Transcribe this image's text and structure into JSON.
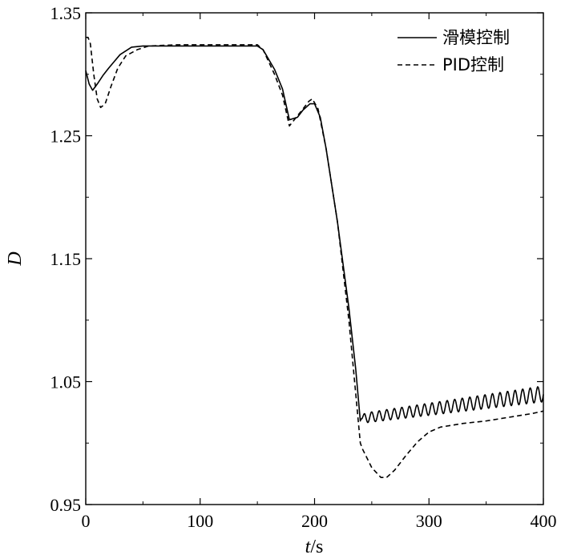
{
  "chart_data": {
    "type": "line",
    "xlabel_italic": "t",
    "xlabel_rest": "/s",
    "ylabel": "D",
    "xlim": [
      0,
      400
    ],
    "ylim": [
      0.95,
      1.35
    ],
    "xticks": [
      0,
      100,
      200,
      300,
      400
    ],
    "yticks": [
      0.95,
      1.05,
      1.15,
      1.25,
      1.35
    ],
    "ytick_labels": [
      "0.95",
      "1.05",
      "1.15",
      "1.25",
      "1.35"
    ],
    "grid": false,
    "legend_position": "top-right",
    "series": [
      {
        "name": "滑模控制",
        "style": "solid",
        "points": [
          [
            0,
            1.303
          ],
          [
            3,
            1.292
          ],
          [
            6,
            1.287
          ],
          [
            10,
            1.292
          ],
          [
            15,
            1.299
          ],
          [
            20,
            1.305
          ],
          [
            30,
            1.316
          ],
          [
            40,
            1.322
          ],
          [
            50,
            1.323
          ],
          [
            150,
            1.323
          ],
          [
            155,
            1.32
          ],
          [
            165,
            1.304
          ],
          [
            172,
            1.288
          ],
          [
            178,
            1.263
          ],
          [
            185,
            1.265
          ],
          [
            190,
            1.271
          ],
          [
            196,
            1.276
          ],
          [
            200,
            1.276
          ],
          [
            205,
            1.265
          ],
          [
            210,
            1.24
          ],
          [
            220,
            1.18
          ],
          [
            230,
            1.11
          ],
          [
            236,
            1.06
          ],
          [
            240,
            1.018
          ]
        ],
        "oscillation": {
          "x_start": 240,
          "x_end": 400,
          "period": 6.6,
          "base_start": 1.02,
          "base_end": 1.04,
          "amp_start": 0.004,
          "amp_end": 0.0065
        }
      },
      {
        "name": "PID控制",
        "style": "dashed",
        "points": [
          [
            0,
            1.33
          ],
          [
            2,
            1.33
          ],
          [
            4,
            1.325
          ],
          [
            7,
            1.3
          ],
          [
            10,
            1.28
          ],
          [
            13,
            1.273
          ],
          [
            17,
            1.276
          ],
          [
            22,
            1.29
          ],
          [
            28,
            1.305
          ],
          [
            35,
            1.315
          ],
          [
            45,
            1.32
          ],
          [
            55,
            1.323
          ],
          [
            80,
            1.324
          ],
          [
            150,
            1.324
          ],
          [
            155,
            1.32
          ],
          [
            165,
            1.3
          ],
          [
            172,
            1.283
          ],
          [
            178,
            1.258
          ],
          [
            184,
            1.265
          ],
          [
            190,
            1.272
          ],
          [
            195,
            1.278
          ],
          [
            198,
            1.28
          ],
          [
            203,
            1.272
          ],
          [
            210,
            1.24
          ],
          [
            220,
            1.18
          ],
          [
            230,
            1.1
          ],
          [
            236,
            1.04
          ],
          [
            240,
            1.0
          ],
          [
            242,
            0.995
          ],
          [
            250,
            0.98
          ],
          [
            258,
            0.972
          ],
          [
            263,
            0.972
          ],
          [
            270,
            0.978
          ],
          [
            280,
            0.99
          ],
          [
            290,
            1.001
          ],
          [
            300,
            1.009
          ],
          [
            310,
            1.013
          ],
          [
            330,
            1.016
          ],
          [
            350,
            1.018
          ],
          [
            370,
            1.021
          ],
          [
            390,
            1.024
          ],
          [
            400,
            1.026
          ]
        ]
      }
    ]
  }
}
